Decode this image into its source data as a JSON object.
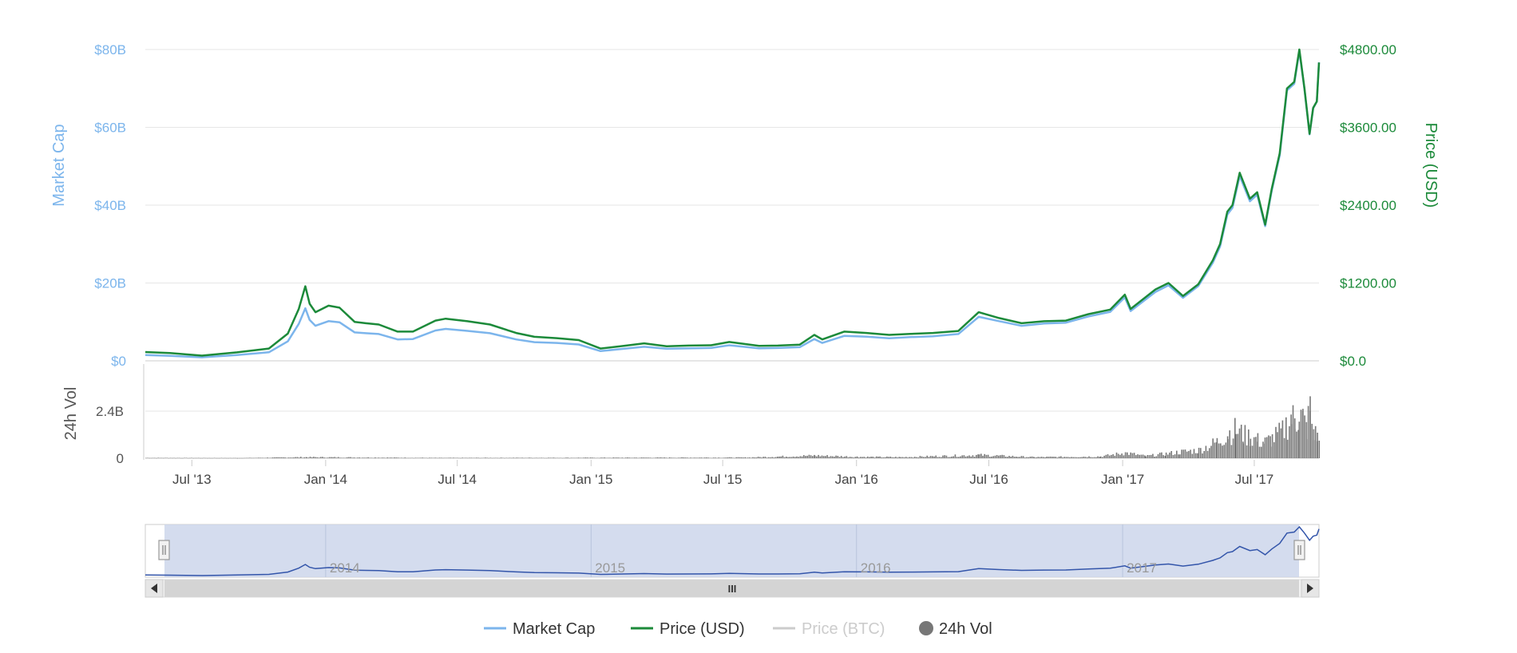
{
  "chart_data": {
    "type": "line",
    "x_range": [
      "2013-04-28",
      "2017-09-28"
    ],
    "grid": true,
    "legend_position": "bottom-center",
    "left_axis": {
      "title": "Market Cap",
      "ticks": [
        "$0",
        "$20B",
        "$40B",
        "$60B",
        "$80B"
      ],
      "tick_values": [
        0,
        20,
        40,
        60,
        80
      ],
      "range": [
        0,
        80
      ],
      "unit": "B USD"
    },
    "right_axis": {
      "title": "Price (USD)",
      "ticks": [
        "$0.0",
        "$1200.00",
        "$2400.00",
        "$3600.00",
        "$4800.00"
      ],
      "tick_values": [
        0,
        1200,
        2400,
        3600,
        4800
      ],
      "range": [
        0,
        4800
      ]
    },
    "volume_axis": {
      "title": "24h Vol",
      "ticks": [
        "0",
        "2.4B"
      ],
      "tick_values": [
        0,
        2.4
      ],
      "range": [
        0,
        2.4
      ],
      "unit": "B USD"
    },
    "x_ticks": [
      {
        "label": "Jul '13",
        "date": "2013-07-01"
      },
      {
        "label": "Jan '14",
        "date": "2014-01-01"
      },
      {
        "label": "Jul '14",
        "date": "2014-07-01"
      },
      {
        "label": "Jan '15",
        "date": "2015-01-01"
      },
      {
        "label": "Jul '15",
        "date": "2015-07-01"
      },
      {
        "label": "Jan '16",
        "date": "2016-01-01"
      },
      {
        "label": "Jul '16",
        "date": "2016-07-01"
      },
      {
        "label": "Jan '17",
        "date": "2017-01-01"
      },
      {
        "label": "Jul '17",
        "date": "2017-07-01"
      }
    ],
    "navigator_ticks": [
      {
        "label": "2014",
        "date": "2014-01-01"
      },
      {
        "label": "2015",
        "date": "2015-01-01"
      },
      {
        "label": "2016",
        "date": "2016-01-01"
      },
      {
        "label": "2017",
        "date": "2017-01-01"
      }
    ],
    "series": [
      {
        "name": "Price (USD)",
        "color": "#1c8a3a",
        "axis": "right",
        "x": [
          "2013-04-28",
          "2013-06-01",
          "2013-07-15",
          "2013-09-01",
          "2013-10-15",
          "2013-11-10",
          "2013-11-25",
          "2013-12-04",
          "2013-12-10",
          "2013-12-18",
          "2014-01-05",
          "2014-01-20",
          "2014-02-10",
          "2014-02-25",
          "2014-03-15",
          "2014-04-10",
          "2014-05-01",
          "2014-06-01",
          "2014-06-15",
          "2014-07-15",
          "2014-08-15",
          "2014-09-20",
          "2014-10-15",
          "2014-11-15",
          "2014-12-15",
          "2015-01-14",
          "2015-02-15",
          "2015-03-15",
          "2015-04-15",
          "2015-05-15",
          "2015-06-15",
          "2015-07-10",
          "2015-08-20",
          "2015-09-15",
          "2015-10-15",
          "2015-11-04",
          "2015-11-15",
          "2015-12-15",
          "2016-01-15",
          "2016-02-15",
          "2016-03-15",
          "2016-04-15",
          "2016-05-20",
          "2016-06-17",
          "2016-07-15",
          "2016-08-15",
          "2016-09-15",
          "2016-10-15",
          "2016-11-15",
          "2016-12-15",
          "2017-01-04",
          "2017-01-12",
          "2017-02-15",
          "2017-03-05",
          "2017-03-25",
          "2017-04-15",
          "2017-05-05",
          "2017-05-15",
          "2017-05-25",
          "2017-06-01",
          "2017-06-11",
          "2017-06-25",
          "2017-07-05",
          "2017-07-16",
          "2017-07-25",
          "2017-08-05",
          "2017-08-15",
          "2017-08-25",
          "2017-09-01",
          "2017-09-08",
          "2017-09-15",
          "2017-09-20",
          "2017-09-25",
          "2017-09-28"
        ],
        "values": [
          135,
          120,
          80,
          130,
          190,
          420,
          800,
          1150,
          880,
          750,
          850,
          820,
          600,
          580,
          560,
          450,
          450,
          620,
          650,
          610,
          560,
          430,
          370,
          350,
          320,
          190,
          230,
          270,
          225,
          235,
          240,
          290,
          230,
          235,
          250,
          400,
          330,
          450,
          430,
          400,
          415,
          430,
          460,
          750,
          660,
          580,
          610,
          620,
          720,
          790,
          1020,
          800,
          1100,
          1200,
          1000,
          1180,
          1550,
          1800,
          2300,
          2400,
          2900,
          2500,
          2600,
          2100,
          2650,
          3200,
          4200,
          4300,
          4800,
          4200,
          3500,
          3900,
          4000,
          4600
        ]
      },
      {
        "name": "Market Cap",
        "color": "#7cb5ec",
        "axis": "left",
        "x": [
          "2013-04-28",
          "2013-06-01",
          "2013-07-15",
          "2013-09-01",
          "2013-10-15",
          "2013-11-10",
          "2013-11-25",
          "2013-12-04",
          "2013-12-10",
          "2013-12-18",
          "2014-01-05",
          "2014-01-20",
          "2014-02-10",
          "2014-02-25",
          "2014-03-15",
          "2014-04-10",
          "2014-05-01",
          "2014-06-01",
          "2014-06-15",
          "2014-07-15",
          "2014-08-15",
          "2014-09-20",
          "2014-10-15",
          "2014-11-15",
          "2014-12-15",
          "2015-01-14",
          "2015-02-15",
          "2015-03-15",
          "2015-04-15",
          "2015-05-15",
          "2015-06-15",
          "2015-07-10",
          "2015-08-20",
          "2015-09-15",
          "2015-10-15",
          "2015-11-04",
          "2015-11-15",
          "2015-12-15",
          "2016-01-15",
          "2016-02-15",
          "2016-03-15",
          "2016-04-15",
          "2016-05-20",
          "2016-06-17",
          "2016-07-15",
          "2016-08-15",
          "2016-09-15",
          "2016-10-15",
          "2016-11-15",
          "2016-12-15",
          "2017-01-04",
          "2017-01-12",
          "2017-02-15",
          "2017-03-05",
          "2017-03-25",
          "2017-04-15",
          "2017-05-05",
          "2017-05-15",
          "2017-05-25",
          "2017-06-01",
          "2017-06-11",
          "2017-06-25",
          "2017-07-05",
          "2017-07-16",
          "2017-07-25",
          "2017-08-05",
          "2017-08-15",
          "2017-08-25",
          "2017-09-01",
          "2017-09-08",
          "2017-09-15",
          "2017-09-20",
          "2017-09-25",
          "2017-09-28"
        ],
        "values": [
          1.5,
          1.3,
          0.9,
          1.5,
          2.2,
          5.0,
          9.5,
          13.5,
          10.5,
          9.0,
          10.2,
          9.9,
          7.3,
          7.1,
          6.9,
          5.5,
          5.6,
          7.8,
          8.2,
          7.7,
          7.1,
          5.5,
          4.8,
          4.6,
          4.2,
          2.5,
          3.1,
          3.6,
          3.1,
          3.2,
          3.3,
          4.0,
          3.2,
          3.3,
          3.5,
          5.6,
          4.6,
          6.4,
          6.2,
          5.8,
          6.1,
          6.3,
          6.9,
          11.3,
          10.2,
          9.0,
          9.6,
          9.8,
          11.4,
          12.6,
          16.3,
          12.8,
          17.7,
          19.4,
          16.2,
          19.2,
          25.2,
          29.4,
          37.6,
          39.3,
          47.5,
          41.0,
          42.7,
          34.6,
          43.7,
          52.8,
          69.5,
          71.2,
          79.6,
          69.8,
          58.2,
          64.9,
          66.6,
          76.7
        ]
      },
      {
        "name": "Price (BTC)",
        "color": "#cccccc",
        "hidden": true
      },
      {
        "name": "24h Vol",
        "color": "#777777",
        "axis": "volume",
        "x": [
          "2013-04-28",
          "2013-09-01",
          "2013-12-05",
          "2014-06-01",
          "2015-01-14",
          "2015-08-01",
          "2015-11-04",
          "2016-01-01",
          "2016-03-01",
          "2016-06-17",
          "2016-09-01",
          "2016-12-01",
          "2017-01-04",
          "2017-02-01",
          "2017-03-01",
          "2017-03-20",
          "2017-04-15",
          "2017-05-10",
          "2017-05-25",
          "2017-06-05",
          "2017-06-15",
          "2017-06-25",
          "2017-07-05",
          "2017-07-15",
          "2017-07-25",
          "2017-08-01",
          "2017-08-08",
          "2017-08-15",
          "2017-08-20",
          "2017-08-25",
          "2017-08-31",
          "2017-09-05",
          "2017-09-10",
          "2017-09-15",
          "2017-09-20",
          "2017-09-25",
          "2017-09-28"
        ],
        "values": [
          0.02,
          0.01,
          0.06,
          0.02,
          0.03,
          0.04,
          0.15,
          0.08,
          0.06,
          0.18,
          0.06,
          0.1,
          0.3,
          0.12,
          0.25,
          0.35,
          0.45,
          0.9,
          1.4,
          1.6,
          1.3,
          1.2,
          1.0,
          0.9,
          1.1,
          1.3,
          1.5,
          2.0,
          2.3,
          2.1,
          2.6,
          2.2,
          1.7,
          2.7,
          1.5,
          1.2,
          0.9
        ]
      }
    ],
    "legend": [
      {
        "label": "Market Cap",
        "color": "#7cb5ec",
        "symbol": "line",
        "enabled": true
      },
      {
        "label": "Price (USD)",
        "color": "#1c8a3a",
        "symbol": "line",
        "enabled": true
      },
      {
        "label": "Price (BTC)",
        "color": "#cccccc",
        "symbol": "line",
        "enabled": false
      },
      {
        "label": "24h Vol",
        "color": "#777777",
        "symbol": "circle",
        "enabled": true
      }
    ],
    "navigator": {
      "scrollbar_grip": "III"
    }
  }
}
